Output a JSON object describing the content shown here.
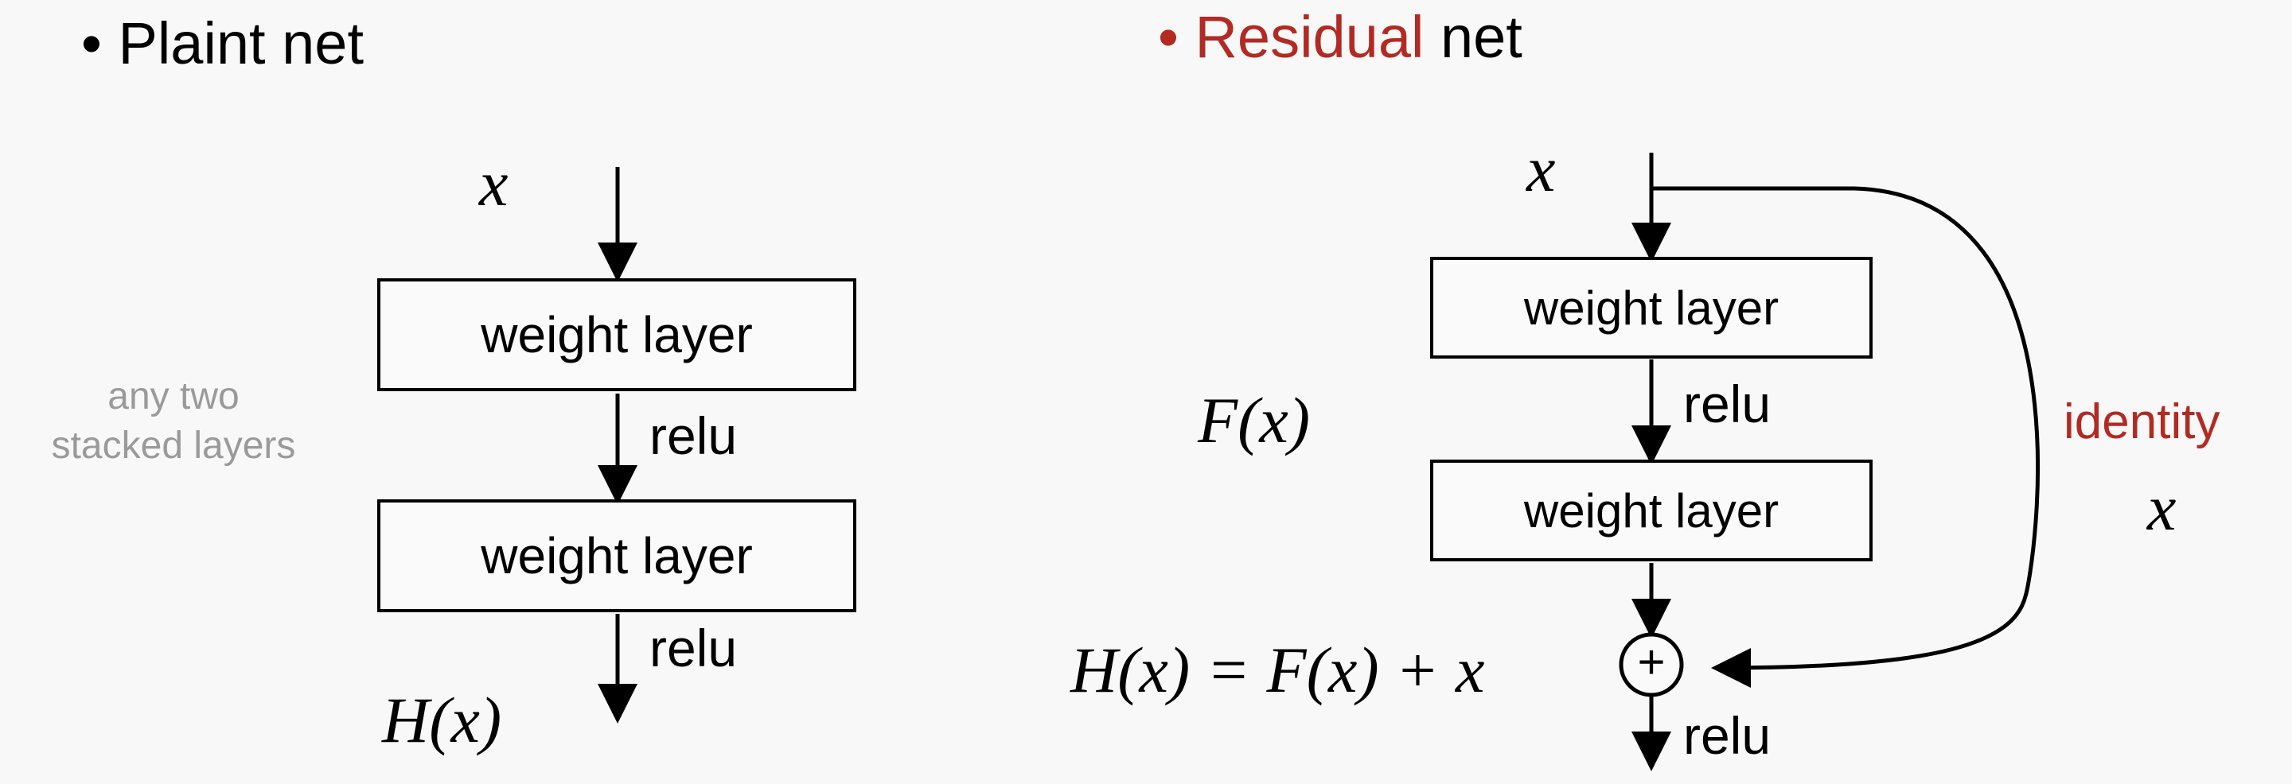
{
  "left": {
    "bullet": "•",
    "title": "Plaint net",
    "input": "x",
    "layer1": "weight layer",
    "relu1": "relu",
    "layer2": "weight layer",
    "relu2": "relu",
    "output": "H(x)",
    "note_line1": "any two",
    "note_line2": "stacked layers"
  },
  "right": {
    "bullet": "•",
    "title_accent": "Residual",
    "title_rest": "net",
    "input": "x",
    "layer1": "weight layer",
    "relu1": "relu",
    "function_label": "F(x)",
    "layer2": "weight layer",
    "equation": "H(x) = F(x) + x",
    "plus": "+",
    "relu_out": "relu",
    "identity_label": "identity",
    "identity_var": "x"
  },
  "colors": {
    "accent": "#b22a22",
    "note": "#9a9a9a",
    "line": "#000000"
  }
}
